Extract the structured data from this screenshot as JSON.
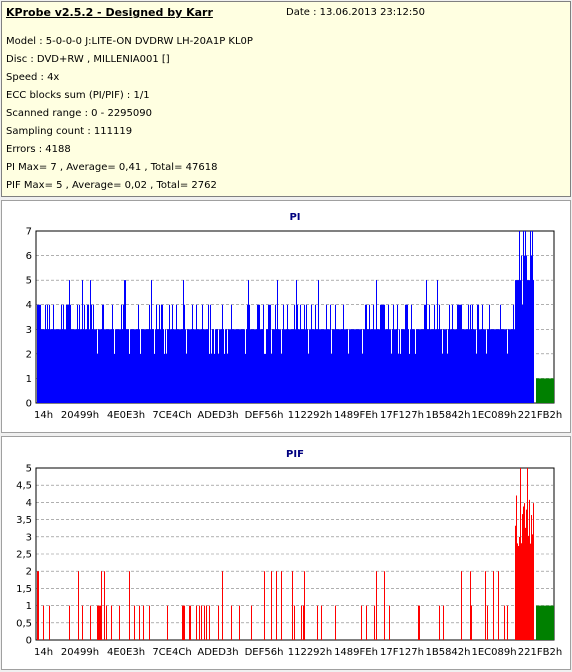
{
  "header": {
    "title": "KProbe v2.5.2 - Designed by Karr",
    "date": "Date : 13.06.2013 23:12:50"
  },
  "info_lines": [
    "Model : 5-0-0-0 J:LITE-ON DVDRW LH-20A1P   KL0P",
    "Disc : DVD+RW , MILLENIA001 []",
    "Speed : 4x",
    "ECC blocks sum (PI/PIF) : 1/1",
    "Scanned range : 0 - 2295090",
    "Sampling count : 111119",
    "Errors : 4188",
    "PI Max= 7 , Average= 0,41 , Total= 47618",
    "PIF Max= 5 , Average= 0,02 , Total= 2762"
  ],
  "colors": {
    "pi_bar": "#0000ff",
    "pif_bar": "#ff0000",
    "end_marker": "#008000",
    "title_blue": "#000080",
    "grid": "#808080"
  },
  "chart_data": [
    {
      "type": "bar",
      "title": "PI",
      "x_tick_labels": [
        "14h",
        "20499h",
        "4E0E3h",
        "7CE4Ch",
        "ADED3h",
        "DEF56h",
        "112292h",
        "1489FEh",
        "17F127h",
        "1B5842h",
        "1EC089h",
        "221FB2h"
      ],
      "y_tick_labels": [
        "0",
        "1",
        "2",
        "3",
        "4",
        "5",
        "6",
        "7"
      ],
      "ylim": [
        0,
        7
      ],
      "grid": true,
      "max": 7,
      "baseline": 3,
      "spike_values": [
        4,
        5
      ],
      "end_marker_value": 1
    },
    {
      "type": "bar",
      "title": "PIF",
      "x_tick_labels": [
        "14h",
        "20499h",
        "4E0E3h",
        "7CE4Ch",
        "ADED3h",
        "DEF56h",
        "112292h",
        "1489FEh",
        "17F127h",
        "1B5842h",
        "1EC089h",
        "221FB2h"
      ],
      "y_tick_labels": [
        "0",
        "0,5",
        "1",
        "1,5",
        "2",
        "2,5",
        "3",
        "3,5",
        "4",
        "4,5",
        "5"
      ],
      "ylim": [
        0,
        5
      ],
      "grid": true,
      "max": 5,
      "baseline": 0,
      "spike_values": [
        1,
        2
      ],
      "end_marker_value": 1
    }
  ]
}
